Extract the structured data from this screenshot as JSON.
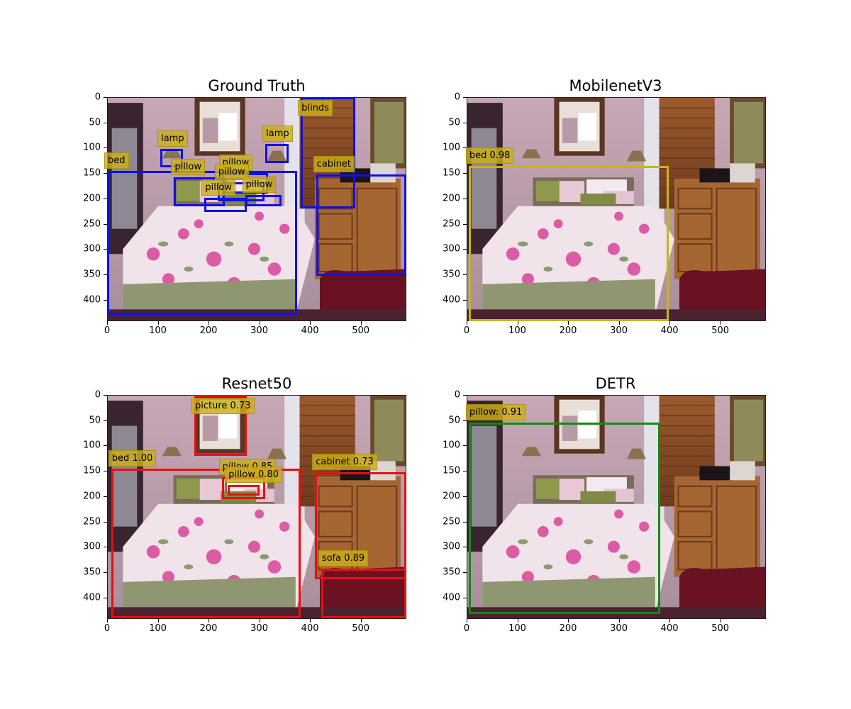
{
  "figure": {
    "image_width": 590,
    "image_height": 442,
    "x_ticks": [
      0,
      100,
      200,
      300,
      400,
      500
    ],
    "y_ticks": [
      0,
      50,
      100,
      150,
      200,
      250,
      300,
      350,
      400
    ],
    "panels": [
      {
        "title": "Ground Truth",
        "box_color": "#1010e6",
        "boxes": [
          {
            "label": "blinds",
            "x1": 382,
            "y1": 0,
            "x2": 490,
            "y2": 220
          },
          {
            "label": "lamp",
            "x1": 105,
            "y1": 102,
            "x2": 150,
            "y2": 138
          },
          {
            "label": "lamp",
            "x1": 312,
            "y1": 92,
            "x2": 358,
            "y2": 130
          },
          {
            "label": "bed",
            "x1": 0,
            "y1": 145,
            "x2": 374,
            "y2": 430
          },
          {
            "label": "cabinet",
            "x1": 412,
            "y1": 152,
            "x2": 590,
            "y2": 352
          },
          {
            "label": "pillow",
            "x1": 132,
            "y1": 158,
            "x2": 232,
            "y2": 215
          },
          {
            "label": "pillow",
            "x1": 226,
            "y1": 150,
            "x2": 318,
            "y2": 190
          },
          {
            "label": "pillow",
            "x1": 218,
            "y1": 168,
            "x2": 310,
            "y2": 205
          },
          {
            "label": "pillow",
            "x1": 272,
            "y1": 193,
            "x2": 344,
            "y2": 215
          },
          {
            "label": "pillow",
            "x1": 192,
            "y1": 198,
            "x2": 276,
            "y2": 226
          }
        ]
      },
      {
        "title": "MobilenetV3",
        "box_color": "#c8b418",
        "boxes": [
          {
            "label": "bed 0.98",
            "x1": 4,
            "y1": 136,
            "x2": 398,
            "y2": 442
          }
        ]
      },
      {
        "title": "Resnet50",
        "box_color": "#e61010",
        "boxes": [
          {
            "label": "picture 0.73",
            "x1": 172,
            "y1": 0,
            "x2": 276,
            "y2": 120
          },
          {
            "label": "bed 1.00",
            "x1": 8,
            "y1": 145,
            "x2": 382,
            "y2": 440
          },
          {
            "label": "cabinet 0.73",
            "x1": 410,
            "y1": 152,
            "x2": 590,
            "y2": 364
          },
          {
            "label": "pillow 0.85",
            "x1": 226,
            "y1": 162,
            "x2": 312,
            "y2": 205
          },
          {
            "label": "pillow 0.80",
            "x1": 238,
            "y1": 178,
            "x2": 300,
            "y2": 198
          },
          {
            "label": "sofa 0.89",
            "x1": 422,
            "y1": 342,
            "x2": 590,
            "y2": 440
          }
        ]
      },
      {
        "title": "DETR",
        "box_color": "#108c10",
        "boxes": [
          {
            "label": "pillow: 0.91",
            "x1": 4,
            "y1": 55,
            "x2": 382,
            "y2": 432
          }
        ]
      }
    ]
  }
}
